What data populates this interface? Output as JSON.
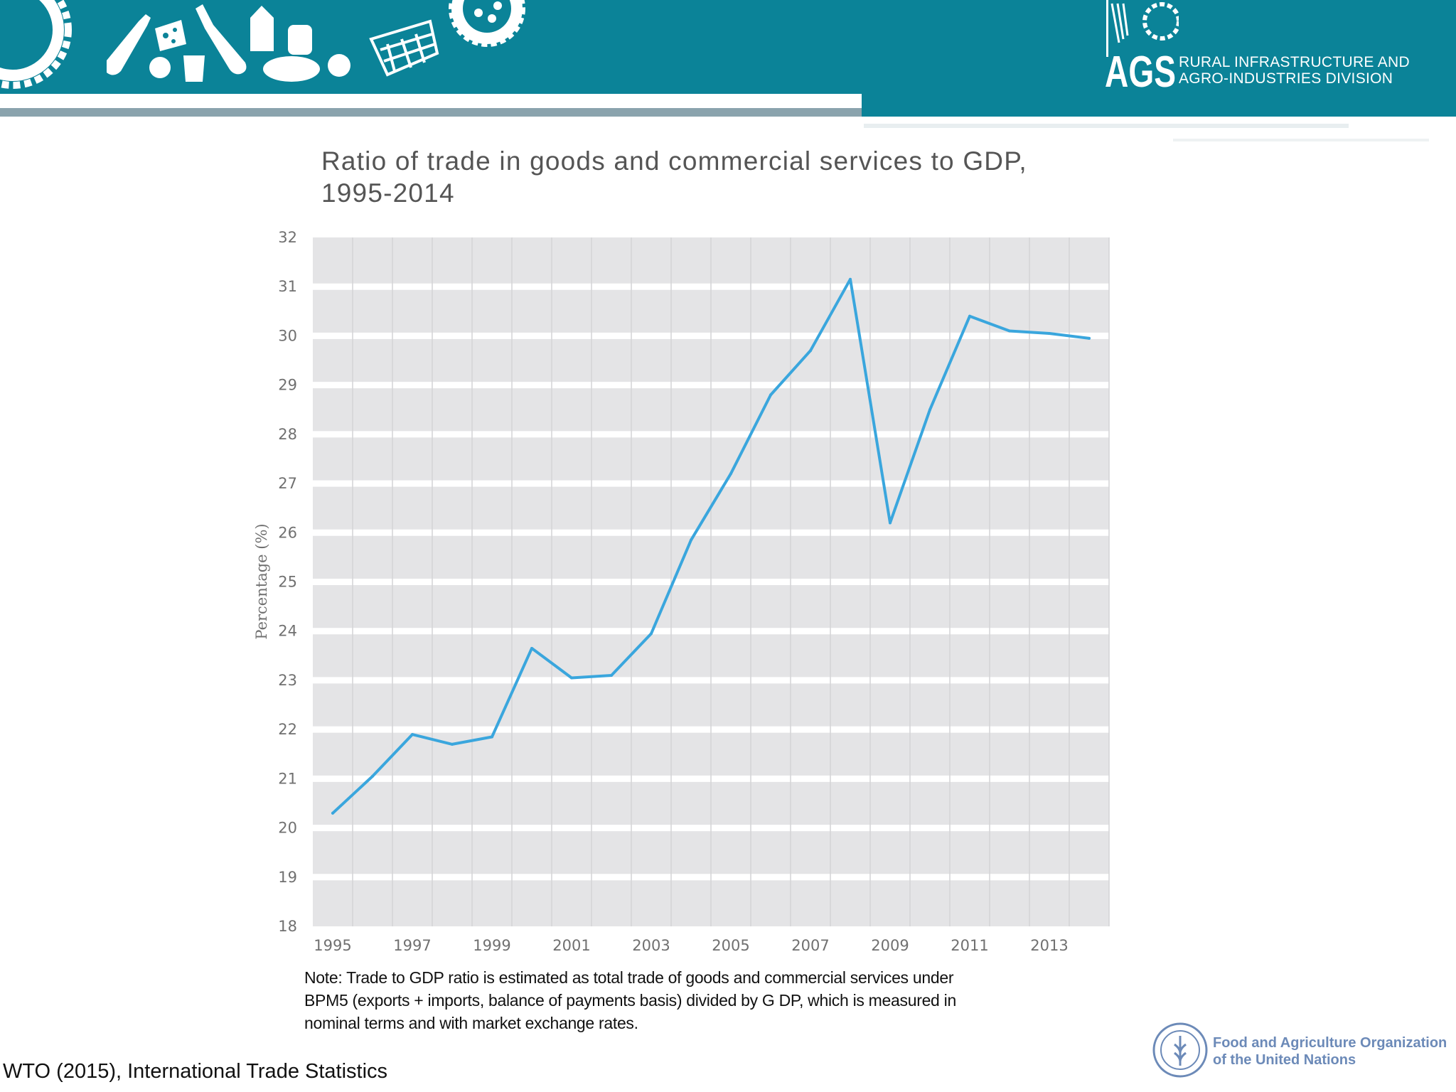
{
  "header": {
    "division_line1": "RURAL INFRASTRUCTURE AND",
    "division_line2": "AGRO-INDUSTRIES DIVISION",
    "logo_text": "AGS",
    "brand_color": "#0b8398",
    "icons": [
      "gear-icon",
      "bottle-icon",
      "cheese-icon",
      "wine-bottle-icon",
      "milk-carton-icon",
      "cup-icon",
      "apple-icon",
      "bread-icon",
      "tomato-icon",
      "basket-icon",
      "gear-icon"
    ]
  },
  "chart_data": {
    "type": "line",
    "title": "Ratio of trade in goods and commercial services to GDP,",
    "subtitle": "1995-2014",
    "xlabel": "",
    "ylabel": "Percentage (%)",
    "ylim": [
      18,
      32
    ],
    "yticks": [
      "18",
      "19",
      "20",
      "21",
      "22",
      "23",
      "24",
      "25",
      "26",
      "27",
      "28",
      "29",
      "30",
      "31",
      "32"
    ],
    "xticks": [
      "1995",
      "1997",
      "1999",
      "2001",
      "2003",
      "2005",
      "2007",
      "2009",
      "2011",
      "2013"
    ],
    "x": [
      1995,
      1996,
      1997,
      1998,
      1999,
      2000,
      2001,
      2002,
      2003,
      2004,
      2005,
      2006,
      2007,
      2008,
      2009,
      2010,
      2011,
      2012,
      2013,
      2014
    ],
    "series": [
      {
        "values": [
          20.3,
          21.05,
          21.9,
          21.7,
          21.85,
          23.65,
          23.05,
          23.1,
          23.95,
          25.85,
          27.2,
          28.8,
          29.7,
          31.15,
          26.2,
          28.5,
          30.4,
          30.1,
          30.05,
          29.95
        ],
        "color": "#3aa6dd"
      }
    ],
    "grid": true,
    "plot_background": "#e4e4e6",
    "legend": "none"
  },
  "note": {
    "line1": "Note: Trade to GDP ratio is estimated as total trade of goods and commercial services under",
    "line2": "BPM5 (exports + imports, balance of payments basis) divided by G DP, which is measured in",
    "line3": "nominal terms and with market exchange rates."
  },
  "source": "WTO (2015), International Trade Statistics",
  "footer": {
    "fao_line1": "Food and Agriculture Organization",
    "fao_line2": "of the United Nations",
    "fao_logo_text": "FAO"
  }
}
